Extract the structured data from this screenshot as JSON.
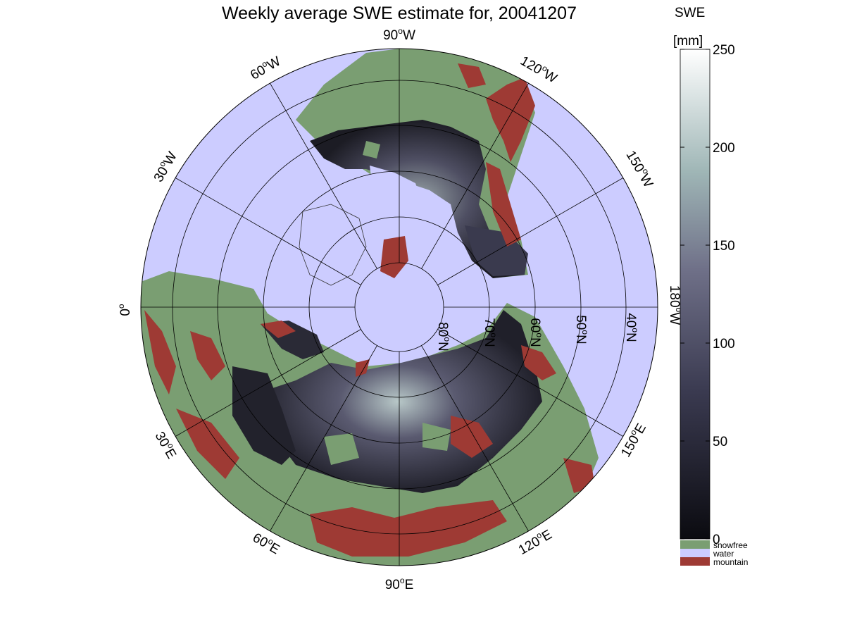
{
  "title": "Weekly average SWE estimate for, 20041207",
  "colorbar": {
    "title_line1": "SWE",
    "title_line2": "[mm]",
    "ticks": [
      "250",
      "200",
      "150",
      "100",
      "50",
      "0"
    ],
    "tick_values": [
      250,
      200,
      150,
      100,
      50,
      0
    ],
    "range": [
      0,
      250
    ],
    "categories": [
      {
        "label": "snowfree",
        "color": "#7a9e72"
      },
      {
        "label": "water",
        "color": "#ccccff"
      },
      {
        "label": "mountain",
        "color": "#9e3a34"
      }
    ]
  },
  "longitude_labels": {
    "lon_90w": "90",
    "lon_90w_suffix": "W",
    "lon_60w": "60",
    "lon_60w_suffix": "W",
    "lon_30w": "30",
    "lon_30w_suffix": "W",
    "lon_0": "0",
    "lon_0_suffix": "",
    "lon_120w": "120",
    "lon_120w_suffix": "W",
    "lon_150w": "150",
    "lon_150w_suffix": "W",
    "lon_180w": "180",
    "lon_180w_suffix": "W",
    "lon_150e": "150",
    "lon_150e_suffix": "E",
    "lon_120e": "120",
    "lon_120e_suffix": "E",
    "lon_90e": "90",
    "lon_90e_suffix": "E",
    "lon_60e": "60",
    "lon_60e_suffix": "E",
    "lon_30e": "30",
    "lon_30e_suffix": "E"
  },
  "latitude_labels": {
    "lat_80": "80",
    "lat_70": "70",
    "lat_60": "60",
    "lat_50": "50",
    "lat_40": "40",
    "suffix": "N"
  },
  "colors": {
    "water": "#ccccff",
    "snowfree": "#7a9e72",
    "mountain": "#9e3a34",
    "swe_low": "#0d0d12",
    "swe_mid": "#5a5a78",
    "swe_high": "#ffffff"
  }
}
